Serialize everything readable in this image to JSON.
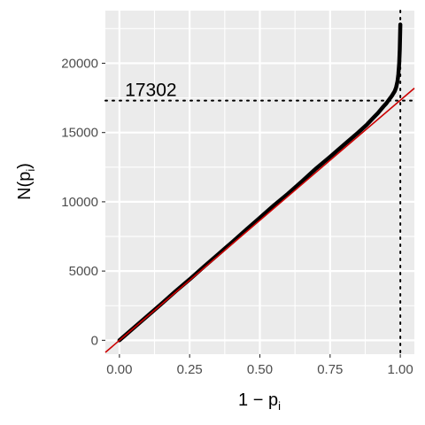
{
  "chart_data": {
    "type": "line",
    "title": "",
    "xlabel": "1 − p",
    "xlabel_subscript": "i",
    "ylabel": "N(p",
    "ylabel_subscript": "i",
    "ylabel_close": ")",
    "xlim": [
      -0.05,
      1.05
    ],
    "ylim": [
      -1000,
      23800
    ],
    "x_ticks": [
      0,
      0.25,
      0.5,
      0.75,
      1.0
    ],
    "x_tick_labels": [
      "0.00",
      "0.25",
      "0.50",
      "0.75",
      "1.00"
    ],
    "y_ticks": [
      0,
      5000,
      10000,
      15000,
      20000
    ],
    "y_tick_labels": [
      "0",
      "5000",
      "10000",
      "15000",
      "20000"
    ],
    "grid": true,
    "background": "#ebebeb",
    "series": [
      {
        "style": "observed",
        "color": "#000000",
        "x": [
          0.0,
          0.05,
          0.1,
          0.15,
          0.2,
          0.25,
          0.3,
          0.35,
          0.4,
          0.45,
          0.5,
          0.55,
          0.6,
          0.65,
          0.7,
          0.75,
          0.8,
          0.85,
          0.88,
          0.9,
          0.92,
          0.94,
          0.95,
          0.96,
          0.97,
          0.98,
          0.985,
          0.99,
          0.993,
          0.996,
          0.998,
          1.0
        ],
        "y": [
          0,
          880,
          1760,
          2640,
          3540,
          4400,
          5300,
          6180,
          7060,
          7960,
          8850,
          9740,
          10580,
          11480,
          12400,
          13250,
          14130,
          15000,
          15550,
          15980,
          16400,
          16880,
          17100,
          17380,
          17650,
          17980,
          18250,
          18700,
          19200,
          20000,
          21000,
          22800
        ]
      },
      {
        "style": "reference",
        "color": "#cc0000",
        "x": [
          -0.05,
          1.05
        ],
        "y": [
          -870,
          18200
        ]
      }
    ],
    "annotations": [
      {
        "text": "17302",
        "x": 0.02,
        "y": 17302
      },
      {
        "type": "hline",
        "y": 17302,
        "style": "dotted",
        "color": "#000000"
      },
      {
        "type": "vline",
        "x": 1.0,
        "style": "dotted",
        "color": "#000000"
      }
    ]
  }
}
